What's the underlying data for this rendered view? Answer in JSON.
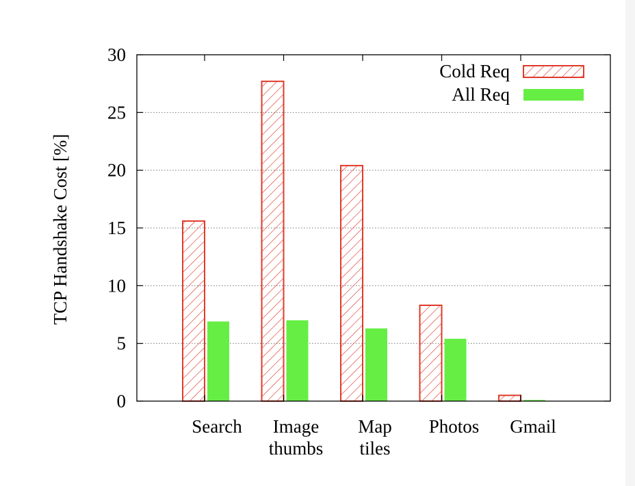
{
  "chart_data": {
    "type": "bar",
    "ylabel": "TCP Handshake Cost [%]",
    "ylim": [
      0,
      30
    ],
    "yticks": [
      0,
      5,
      10,
      15,
      20,
      25,
      30
    ],
    "grid": "horizontal dotted",
    "legend_position": "top-right",
    "categories": [
      [
        "Search"
      ],
      [
        "Image",
        "thumbs"
      ],
      [
        "Map",
        "tiles"
      ],
      [
        "Photos"
      ],
      [
        "Gmail"
      ]
    ],
    "series": [
      {
        "name": "Cold Req",
        "values": [
          15.6,
          27.7,
          20.4,
          8.3,
          0.5
        ],
        "color": "#e03a2a",
        "fill": "hatch"
      },
      {
        "name": "All Req",
        "values": [
          6.9,
          7.0,
          6.3,
          5.4,
          0.1
        ],
        "color": "#66ee44",
        "fill": "solid"
      }
    ]
  }
}
